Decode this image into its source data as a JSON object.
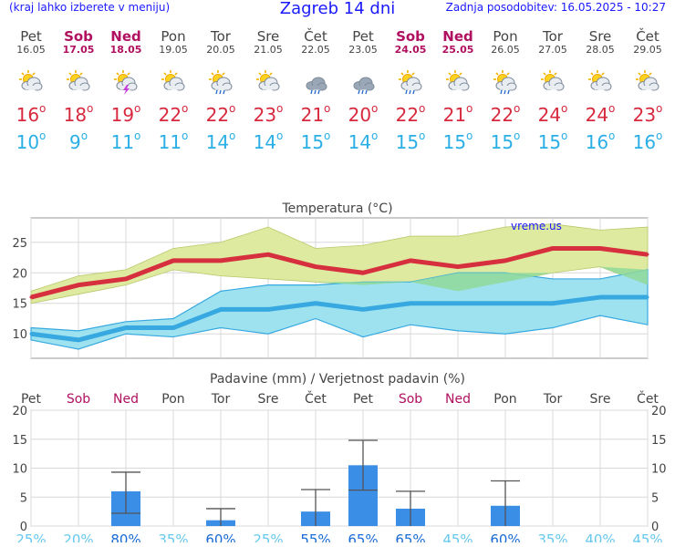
{
  "header": {
    "menu_hint": "(kraj lahko izberete v meniju)",
    "title": "Zagreb 14 dni",
    "updated": "Zadnja posodobitev: 16.05.2025 - 10:27"
  },
  "days": [
    {
      "name": "Pet",
      "date": "16.05",
      "weekend": false,
      "icon": "sun-cloud-icon",
      "hi": "16",
      "lo": "10"
    },
    {
      "name": "Sob",
      "date": "17.05",
      "weekend": true,
      "icon": "sun-cloud-icon",
      "hi": "18",
      "lo": "9"
    },
    {
      "name": "Ned",
      "date": "18.05",
      "weekend": true,
      "icon": "sun-cloud-storm-icon",
      "hi": "19",
      "lo": "11"
    },
    {
      "name": "Pon",
      "date": "19.05",
      "weekend": false,
      "icon": "sun-cloud-icon",
      "hi": "22",
      "lo": "11"
    },
    {
      "name": "Tor",
      "date": "20.05",
      "weekend": false,
      "icon": "sun-cloud-rain-icon",
      "hi": "22",
      "lo": "14"
    },
    {
      "name": "Sre",
      "date": "21.05",
      "weekend": false,
      "icon": "sun-cloud-icon",
      "hi": "23",
      "lo": "14"
    },
    {
      "name": "Čet",
      "date": "22.05",
      "weekend": false,
      "icon": "cloud-rain-icon",
      "hi": "21",
      "lo": "15"
    },
    {
      "name": "Pet",
      "date": "23.05",
      "weekend": false,
      "icon": "cloud-rain-icon",
      "hi": "20",
      "lo": "14"
    },
    {
      "name": "Sob",
      "date": "24.05",
      "weekend": true,
      "icon": "sun-cloud-rain-icon",
      "hi": "22",
      "lo": "15"
    },
    {
      "name": "Ned",
      "date": "25.05",
      "weekend": true,
      "icon": "sun-cloud-icon",
      "hi": "21",
      "lo": "15"
    },
    {
      "name": "Pon",
      "date": "26.05",
      "weekend": false,
      "icon": "sun-cloud-rain-icon",
      "hi": "22",
      "lo": "15"
    },
    {
      "name": "Tor",
      "date": "27.05",
      "weekend": false,
      "icon": "sun-cloud-icon",
      "hi": "24",
      "lo": "15"
    },
    {
      "name": "Sre",
      "date": "28.05",
      "weekend": false,
      "icon": "sun-cloud-icon",
      "hi": "24",
      "lo": "16"
    },
    {
      "name": "Čet",
      "date": "29.05",
      "weekend": false,
      "icon": "sun-cloud-icon",
      "hi": "23",
      "lo": "16"
    }
  ],
  "chart_data": [
    {
      "type": "line",
      "title": "Temperatura (°C)",
      "watermark": "vreme.us",
      "x": [
        "Pet",
        "Sob",
        "Ned",
        "Pon",
        "Tor",
        "Sre",
        "Čet",
        "Pet",
        "Sob",
        "Ned",
        "Pon",
        "Tor",
        "Sre",
        "Čet"
      ],
      "ylim": [
        6,
        29
      ],
      "yticks": [
        10,
        15,
        20,
        25
      ],
      "grid": true,
      "series": [
        {
          "key": "max",
          "values": [
            16,
            18,
            19,
            22,
            22,
            23,
            21,
            20,
            22,
            21,
            22,
            24,
            24,
            23
          ],
          "band": [
            [
              15,
              17
            ],
            [
              16.5,
              19.5
            ],
            [
              18,
              20.5
            ],
            [
              20.5,
              24
            ],
            [
              19.5,
              25
            ],
            [
              19,
              27.5
            ],
            [
              18.5,
              24
            ],
            [
              18,
              24.5
            ],
            [
              18.5,
              26
            ],
            [
              17,
              26
            ],
            [
              18.5,
              27.5
            ],
            [
              20,
              28
            ],
            [
              21,
              27
            ],
            [
              18,
              27.5
            ]
          ]
        },
        {
          "key": "min",
          "values": [
            10,
            9,
            11,
            11,
            14,
            14,
            15,
            14,
            15,
            15,
            15,
            15,
            16,
            16
          ],
          "band": [
            [
              9,
              11
            ],
            [
              7.5,
              10.5
            ],
            [
              10,
              12
            ],
            [
              9.5,
              12.5
            ],
            [
              11,
              17
            ],
            [
              10,
              18
            ],
            [
              12.5,
              18
            ],
            [
              9.5,
              18.5
            ],
            [
              11.5,
              18.5
            ],
            [
              10.5,
              20
            ],
            [
              10,
              20
            ],
            [
              11,
              19
            ],
            [
              13,
              19
            ],
            [
              11.5,
              20.5
            ]
          ]
        }
      ],
      "colors": {
        "max": "#d62f3e",
        "min": "#37a9e0",
        "max_band": "#dfeaa1",
        "min_band": "#9ee2f0",
        "overlap": "#8fd99a"
      }
    },
    {
      "type": "bar",
      "title": "Padavine (mm) / Verjetnost padavin (%)",
      "categories": [
        "Pet",
        "Sob",
        "Ned",
        "Pon",
        "Tor",
        "Sre",
        "Čet",
        "Pet",
        "Sob",
        "Ned",
        "Pon",
        "Tor",
        "Sre",
        "Čet"
      ],
      "weekend": [
        false,
        true,
        true,
        false,
        false,
        false,
        false,
        false,
        true,
        true,
        false,
        false,
        false,
        false
      ],
      "values": [
        0,
        0,
        6,
        0,
        1,
        0,
        2.5,
        10.5,
        3,
        0,
        3.5,
        0,
        0,
        0
      ],
      "error_low": [
        null,
        null,
        2.2,
        null,
        null,
        null,
        null,
        6.2,
        null,
        null,
        null,
        null,
        null,
        null
      ],
      "error_high": [
        null,
        null,
        9.3,
        null,
        3,
        null,
        6.3,
        14.8,
        6,
        null,
        7.8,
        null,
        null,
        null
      ],
      "probability": [
        "25%",
        "20%",
        "80%",
        "35%",
        "60%",
        "25%",
        "55%",
        "65%",
        "65%",
        "45%",
        "60%",
        "35%",
        "40%",
        "45%"
      ],
      "ylim": [
        0,
        20
      ],
      "yticks": [
        0,
        5,
        10,
        15,
        20
      ],
      "colors": {
        "bar": "#3a8ee6",
        "whisker": "#555555"
      }
    }
  ]
}
